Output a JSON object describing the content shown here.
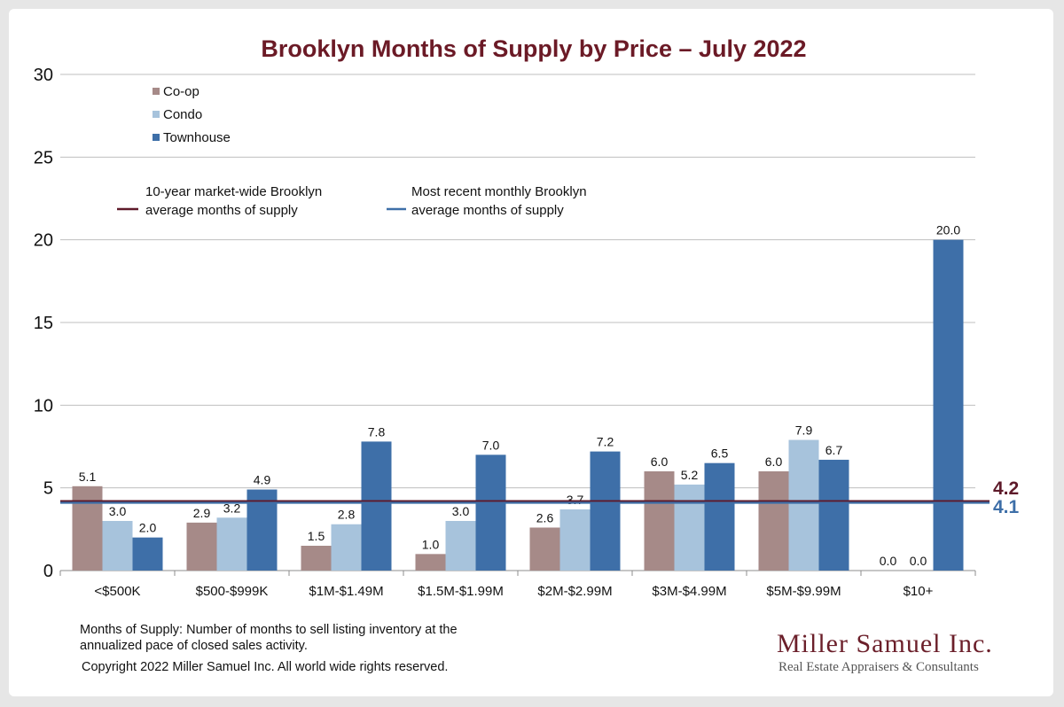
{
  "colors": {
    "title": "#6b1a26",
    "coop": "#a68a88",
    "condo": "#a7c3dc",
    "townhouse": "#3e6fa8",
    "avg10": "#5e1a2a",
    "recent": "#3e6fa8",
    "grid": "#bfbfbf"
  },
  "chart_data": {
    "type": "bar",
    "title": "Brooklyn Months of Supply by Price – July 2022",
    "xlabel": "",
    "ylabel": "",
    "ylim": [
      0,
      30
    ],
    "yticks": [
      "0",
      "5",
      "10",
      "15",
      "20",
      "25",
      "30"
    ],
    "grid": true,
    "legend_position": "top-left",
    "categories": [
      "<$500K",
      "$500-$999K",
      "$1M-$1.49M",
      "$1.5M-$1.99M",
      "$2M-$2.99M",
      "$3M-$4.99M",
      "$5M-$9.99M",
      "$10+"
    ],
    "series": [
      {
        "name": "Co-op",
        "values": [
          5.1,
          2.9,
          1.5,
          1.0,
          2.6,
          6.0,
          6.0,
          0.0
        ],
        "labels": [
          "5.1",
          "2.9",
          "1.5",
          "1.0",
          "2.6",
          "6.0",
          "6.0",
          "0.0"
        ]
      },
      {
        "name": "Condo",
        "values": [
          3.0,
          3.2,
          2.8,
          3.0,
          3.7,
          5.2,
          7.9,
          0.0
        ],
        "labels": [
          "3.0",
          "3.2",
          "2.8",
          "3.0",
          "3.7",
          "5.2",
          "7.9",
          "0.0"
        ]
      },
      {
        "name": "Townhouse",
        "values": [
          2.0,
          4.9,
          7.8,
          7.0,
          7.2,
          6.5,
          6.7,
          20.0
        ],
        "labels": [
          "2.0",
          "4.9",
          "7.8",
          "7.0",
          "7.2",
          "6.5",
          "6.7",
          "20.0"
        ]
      }
    ],
    "reference_lines": [
      {
        "name_line1": "10-year market-wide Brooklyn",
        "name_line2": "average months of supply",
        "value": 4.2,
        "label": "4.2"
      },
      {
        "name_line1": "Most recent monthly Brooklyn",
        "name_line2": "average months of supply",
        "value": 4.1,
        "label": "4.1"
      }
    ]
  },
  "footnote": {
    "definition": "Months of Supply: Number of months to sell listing inventory at the annualized pace of closed sales activity.",
    "copyright": "Copyright 2022 Miller Samuel Inc.  All world wide rights reserved."
  },
  "logo": {
    "name": "Miller Samuel Inc.",
    "tagline": "Real Estate Appraisers & Consultants"
  }
}
